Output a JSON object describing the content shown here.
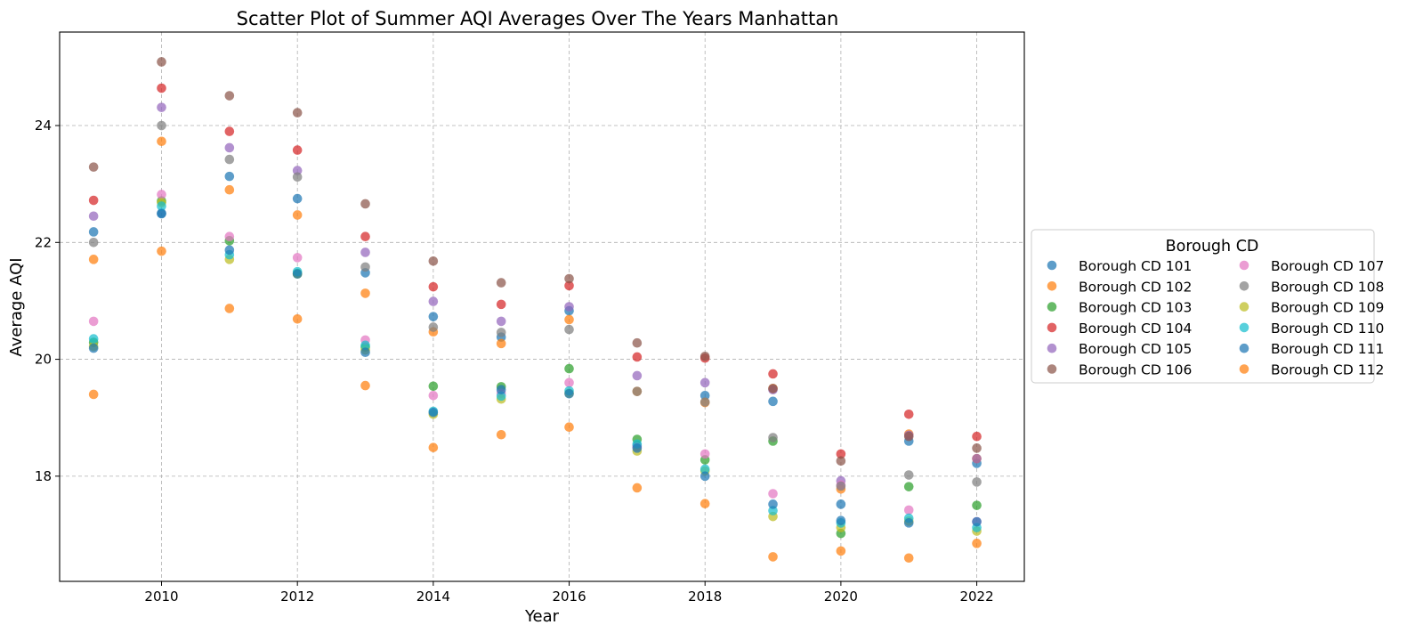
{
  "chart_data": {
    "type": "scatter",
    "title": "Scatter Plot of Summer AQI Averages Over The Years Manhattan",
    "xlabel": "Year",
    "ylabel": "Average AQI",
    "xlim": [
      2008.5,
      2022.7
    ],
    "ylim": [
      16.2,
      25.6
    ],
    "xticks": [
      "2010",
      "2012",
      "2014",
      "2016",
      "2018",
      "2020",
      "2022"
    ],
    "yticks": [
      "18",
      "20",
      "22",
      "24"
    ],
    "grid": true,
    "legend": {
      "title": "Borough CD",
      "placement": "outside-right",
      "columns": 2
    },
    "x": [
      2009,
      2010,
      2011,
      2012,
      2013,
      2014,
      2015,
      2016,
      2017,
      2018,
      2019,
      2020,
      2021,
      2022
    ],
    "series": [
      {
        "name": "Borough CD 101",
        "color": "#1f77b4",
        "values": [
          22.18,
          22.5,
          23.13,
          22.75,
          21.48,
          20.73,
          20.38,
          20.83,
          18.52,
          19.38,
          19.28,
          17.52,
          18.6,
          18.22
        ]
      },
      {
        "name": "Borough CD 102",
        "color": "#ff7f0e",
        "values": [
          21.71,
          23.73,
          22.9,
          22.47,
          21.13,
          20.47,
          20.27,
          20.68,
          19.45,
          19.26,
          19.5,
          17.78,
          18.72,
          18.3
        ]
      },
      {
        "name": "Borough CD 103",
        "color": "#2ca02c",
        "values": [
          20.29,
          22.71,
          22.03,
          21.47,
          20.21,
          19.54,
          19.53,
          19.84,
          18.63,
          18.28,
          18.6,
          17.02,
          17.82,
          17.5
        ]
      },
      {
        "name": "Borough CD 104",
        "color": "#d62728",
        "values": [
          22.72,
          24.64,
          23.9,
          23.58,
          22.1,
          21.24,
          20.94,
          21.26,
          20.04,
          20.02,
          19.75,
          18.38,
          19.06,
          18.68
        ]
      },
      {
        "name": "Borough CD 105",
        "color": "#9467bd",
        "values": [
          22.45,
          24.31,
          23.62,
          23.23,
          21.83,
          20.99,
          20.65,
          20.9,
          19.72,
          19.6,
          19.48,
          17.92,
          18.7,
          18.3
        ]
      },
      {
        "name": "Borough CD 106",
        "color": "#8c564b",
        "values": [
          23.29,
          25.09,
          24.51,
          24.22,
          22.66,
          21.68,
          21.31,
          21.38,
          20.28,
          20.05,
          19.5,
          18.26,
          18.68,
          18.48
        ]
      },
      {
        "name": "Borough CD 107",
        "color": "#e377c2",
        "values": [
          20.65,
          22.82,
          22.1,
          21.74,
          20.33,
          19.38,
          19.42,
          19.6,
          18.5,
          18.38,
          17.7,
          17.85,
          17.42,
          17.22
        ]
      },
      {
        "name": "Borough CD 108",
        "color": "#7f7f7f",
        "values": [
          22.0,
          24.0,
          23.42,
          23.12,
          21.58,
          20.55,
          20.46,
          20.51,
          19.45,
          19.27,
          18.66,
          17.83,
          18.02,
          17.9
        ]
      },
      {
        "name": "Borough CD 109",
        "color": "#bcbd22",
        "values": [
          20.22,
          22.68,
          21.71,
          21.46,
          20.16,
          19.06,
          19.32,
          19.42,
          18.43,
          18.09,
          17.31,
          17.12,
          17.23,
          17.06
        ]
      },
      {
        "name": "Borough CD 110",
        "color": "#17becf",
        "values": [
          20.35,
          22.62,
          21.79,
          21.5,
          20.24,
          19.11,
          19.37,
          19.46,
          18.55,
          18.12,
          17.41,
          17.2,
          17.28,
          17.12
        ]
      },
      {
        "name": "Borough CD 111",
        "color": "#1f77b4",
        "values": [
          20.19,
          22.49,
          21.87,
          21.46,
          20.12,
          19.09,
          19.48,
          19.41,
          18.48,
          18.0,
          17.52,
          17.24,
          17.2,
          17.22
        ]
      },
      {
        "name": "Borough CD 112",
        "color": "#ff7f0e",
        "values": [
          19.4,
          21.85,
          20.87,
          20.69,
          19.55,
          18.49,
          18.71,
          18.84,
          17.8,
          17.53,
          16.62,
          16.72,
          16.6,
          16.85
        ]
      }
    ]
  }
}
